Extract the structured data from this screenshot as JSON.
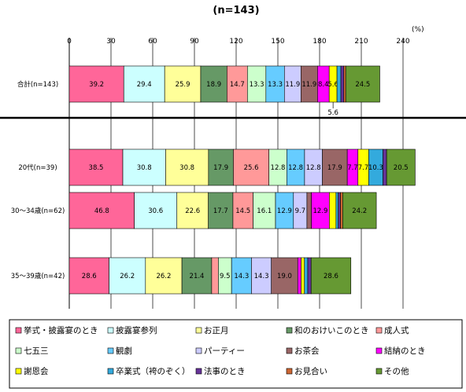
{
  "chart_data": {
    "type": "bar",
    "orientation": "horizontal",
    "stacked": true,
    "title": "(n=143)",
    "unit_label": "(%)",
    "xlim": [
      0,
      240
    ],
    "xticks": [
      0,
      30,
      60,
      90,
      120,
      150,
      180,
      210,
      240
    ],
    "grid": true,
    "legend_position": "bottom",
    "categories": [
      "合計(n=143)",
      "20代(n=39)",
      "30～34歳(n=62)",
      "35～39歳(n=42)"
    ],
    "series": [
      {
        "name": "挙式・披露宴のとき",
        "color": "#ff6699",
        "values": [
          39.2,
          38.5,
          46.8,
          28.6
        ],
        "labels": [
          "39.2",
          "38.5",
          "46.8",
          "28.6"
        ]
      },
      {
        "name": "披露宴参列",
        "color": "#ccffff",
        "values": [
          29.4,
          30.8,
          30.6,
          26.2
        ],
        "labels": [
          "29.4",
          "30.8",
          "30.6",
          "26.2"
        ]
      },
      {
        "name": "お正月",
        "color": "#ffff99",
        "values": [
          25.9,
          30.8,
          22.6,
          26.2
        ],
        "labels": [
          "25.9",
          "30.8",
          "22.6",
          "26.2"
        ]
      },
      {
        "name": "和のおけいこのとき",
        "color": "#669966",
        "values": [
          18.9,
          17.9,
          17.7,
          21.4
        ],
        "labels": [
          "18.9",
          "17.9",
          "17.7",
          "21.4"
        ]
      },
      {
        "name": "成人式",
        "color": "#ff9999",
        "values": [
          14.7,
          25.6,
          14.5,
          4.8
        ],
        "labels": [
          "14.7",
          "25.6",
          "14.5",
          ""
        ]
      },
      {
        "name": "七五三",
        "color": "#ccffcc",
        "values": [
          13.3,
          12.8,
          16.1,
          9.5
        ],
        "labels": [
          "13.3",
          "12.8",
          "16.1",
          "9.5"
        ]
      },
      {
        "name": "観劇",
        "color": "#66ccff",
        "values": [
          13.3,
          12.8,
          12.9,
          14.3
        ],
        "labels": [
          "13.3",
          "12.8",
          "12.9",
          "14.3"
        ]
      },
      {
        "name": "パーティー",
        "color": "#ccccff",
        "values": [
          11.9,
          12.8,
          9.7,
          14.3
        ],
        "labels": [
          "11.9",
          "12.8",
          "9.7",
          "14.3"
        ]
      },
      {
        "name": "お茶会",
        "color": "#996666",
        "values": [
          11.9,
          17.9,
          3.2,
          19.0
        ],
        "labels": [
          "11.9",
          "17.9",
          "",
          "19.0"
        ]
      },
      {
        "name": "結納のとき",
        "color": "#ff00ff",
        "values": [
          8.4,
          7.7,
          12.9,
          2.4
        ],
        "labels": [
          "8.4",
          "7.7",
          "12.9",
          ""
        ]
      },
      {
        "name": "謝恩会",
        "color": "#ffff00",
        "values": [
          5.6,
          7.7,
          4.8,
          2.4
        ],
        "labels": [
          "5.6",
          "7.7",
          "",
          ""
        ]
      },
      {
        "name": "卒業式（袴のぞく）",
        "color": "#33aadd",
        "values": [
          2.8,
          10.3,
          1.6,
          2.4
        ],
        "labels": [
          "",
          "10.3",
          "",
          ""
        ]
      },
      {
        "name": "法事のとき",
        "color": "#663399",
        "values": [
          2.1,
          2.6,
          1.6,
          2.4
        ],
        "labels": [
          "",
          "",
          "",
          ""
        ]
      },
      {
        "name": "お見合い",
        "color": "#cc6633",
        "values": [
          1.4,
          0,
          1.6,
          0
        ],
        "labels": [
          "",
          "",
          "",
          ""
        ]
      },
      {
        "name": "その他",
        "color": "#669933",
        "values": [
          24.5,
          20.5,
          24.2,
          28.6
        ],
        "labels": [
          "24.5",
          "20.5",
          "24.2",
          "28.6"
        ]
      }
    ],
    "annotations": [
      {
        "text": "5.6",
        "category": "合計(n=143)",
        "series": "謝恩会"
      }
    ]
  }
}
